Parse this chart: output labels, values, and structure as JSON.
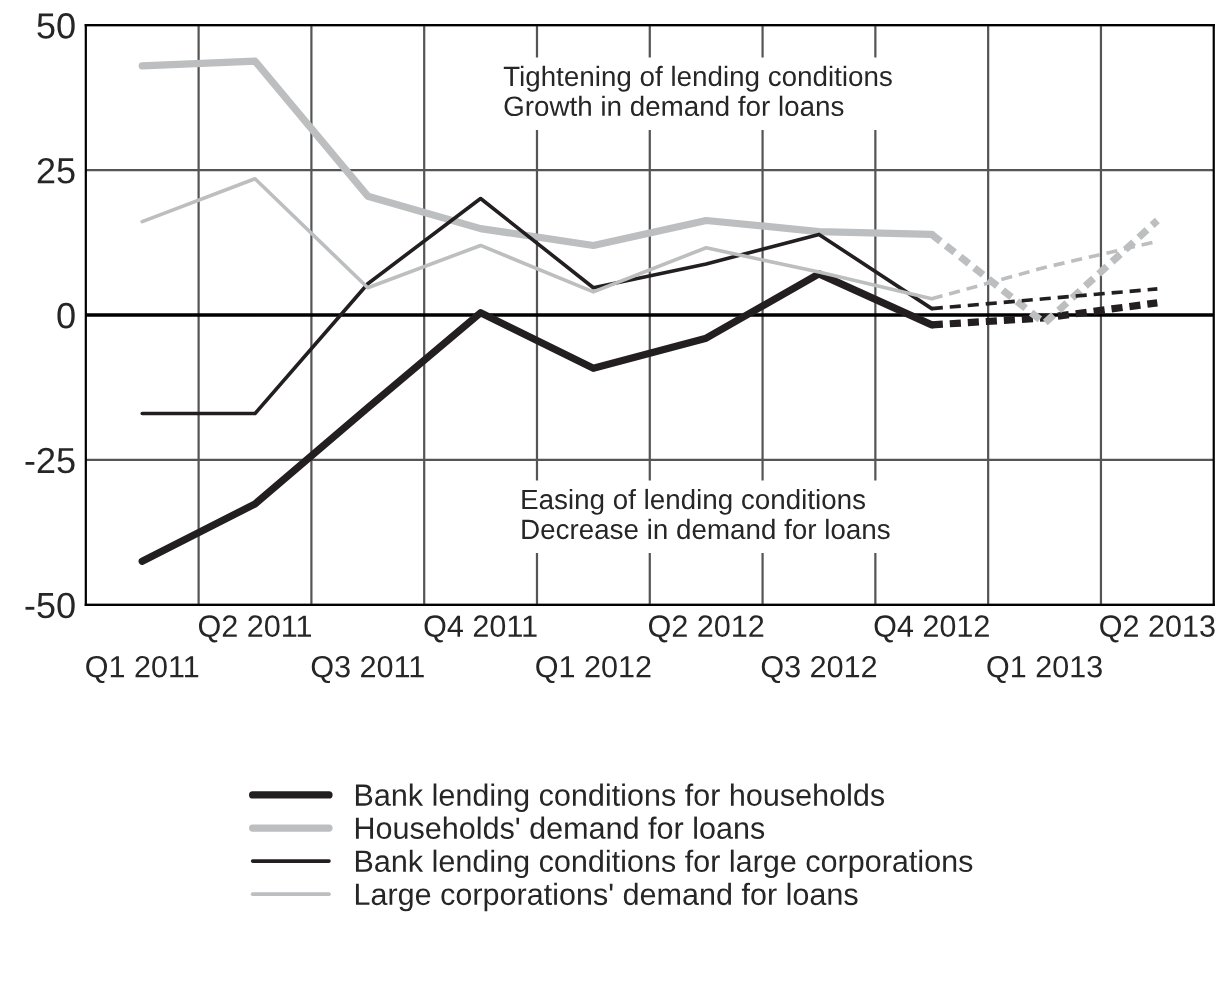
{
  "chart_data": {
    "type": "line",
    "categories": [
      "Q1 2011",
      "Q2 2011",
      "Q3 2011",
      "Q4 2011",
      "Q1 2012",
      "Q2 2012",
      "Q3 2012",
      "Q4 2012",
      "Q1 2013",
      "Q2 2013"
    ],
    "ylim": [
      -50,
      50
    ],
    "yticks": [
      -50,
      -25,
      0,
      25,
      50
    ],
    "grid": true,
    "legend": "bottom",
    "marker": "none",
    "ref_lines": [
      {
        "axis": "y",
        "value": 0,
        "color": "#000000"
      }
    ],
    "annotations": [
      "Tightening of lending conditions\nGrowth in demand for loans",
      "Easing of lending conditions\nDecrease in demand for loans"
    ],
    "series": [
      {
        "name": "Bank lending conditions for households",
        "color": "#231f20",
        "line_style": "solid",
        "values": [
          -42.5,
          -32.6,
          -16,
          0.4,
          -9.2,
          -4,
          7.1,
          -1.7,
          null,
          null
        ]
      },
      {
        "name": "Households' demand for loans",
        "color": "#bcbec0",
        "line_style": "solid",
        "values": [
          43,
          43.8,
          20.5,
          14.9,
          12,
          16.3,
          14.4,
          13.9,
          null,
          null
        ]
      },
      {
        "name": "Bank lending conditions for large corporations",
        "color": "#231f20",
        "line_style": "solid",
        "values": [
          -17,
          -17,
          5.4,
          20.1,
          4.7,
          8.8,
          13.9,
          1.1,
          null,
          null
        ]
      },
      {
        "name": "Large corporations' demand for loans",
        "color": "#bcbec0",
        "line_style": "solid",
        "values": [
          16.1,
          23.5,
          4.7,
          12,
          4,
          11.6,
          7.4,
          2.8,
          null,
          null
        ]
      },
      {
        "color": "#231f20",
        "line_style": "dashed",
        "values": [
          null,
          null,
          null,
          null,
          null,
          null,
          null,
          -1.7,
          -0.5,
          2.1
        ]
      },
      {
        "color": "#bcbec0",
        "line_style": "dashed",
        "values": [
          null,
          null,
          null,
          null,
          null,
          null,
          null,
          13.9,
          -1.4,
          16.3
        ]
      },
      {
        "color": "#231f20",
        "line_style": "dashed",
        "values": [
          null,
          null,
          null,
          null,
          null,
          null,
          null,
          1.1,
          2.8,
          4.5
        ]
      },
      {
        "color": "#bcbec0",
        "line_style": "dashed",
        "values": [
          null,
          null,
          null,
          null,
          null,
          null,
          null,
          2.8,
          8.2,
          12.7
        ]
      }
    ]
  }
}
